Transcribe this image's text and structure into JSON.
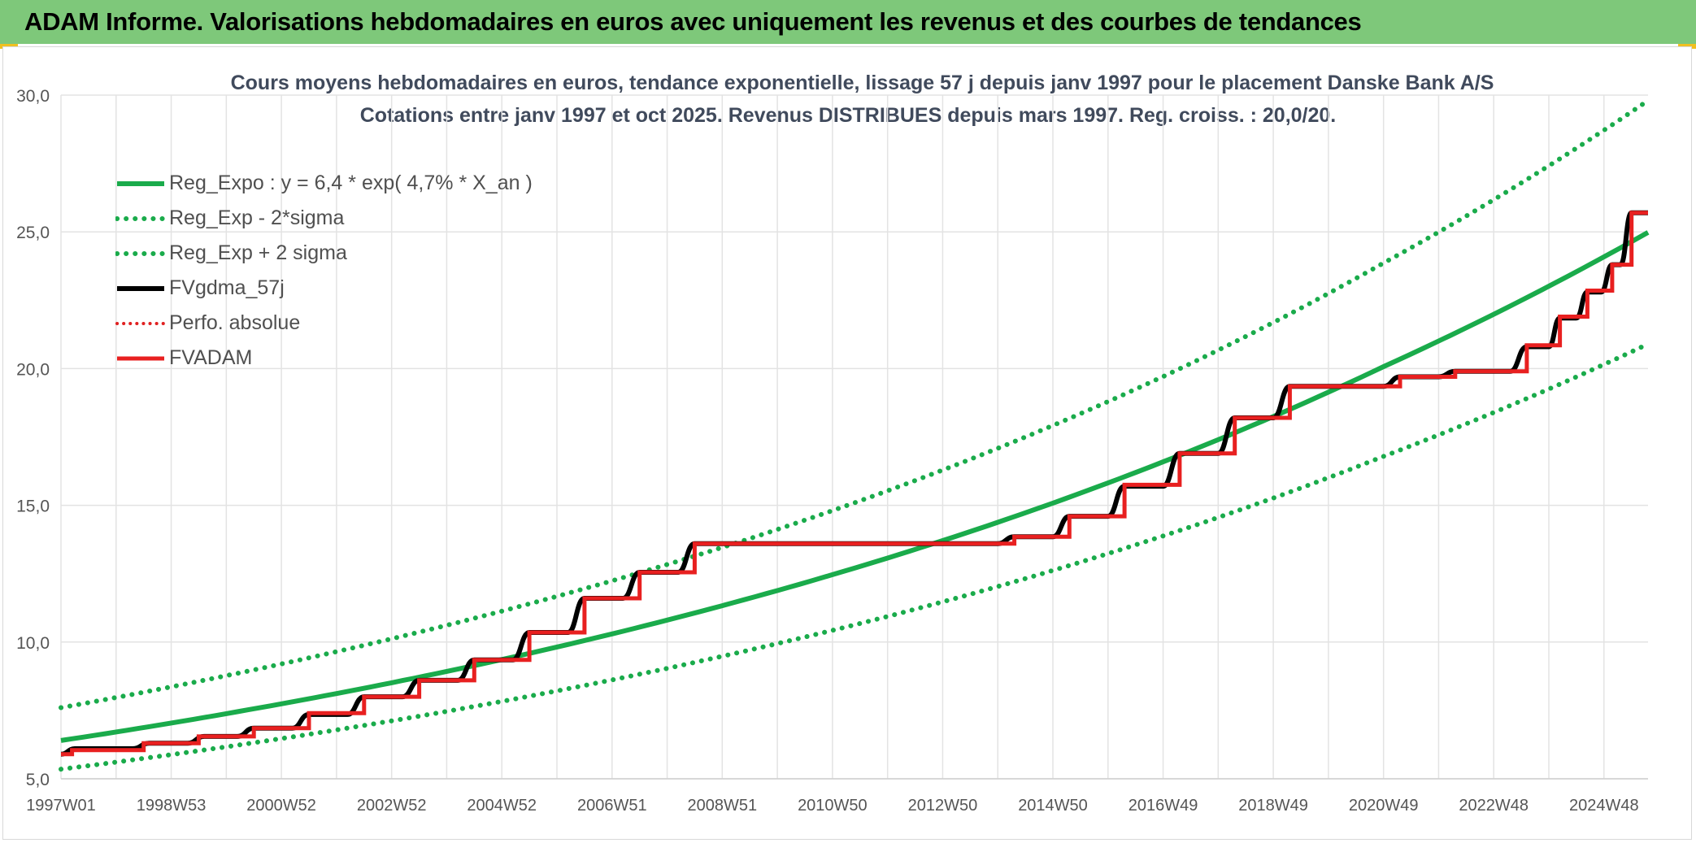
{
  "banner": {
    "title": "ADAM Informe. Valorisations hebdomadaires en euros avec uniquement les revenus et des courbes de tendances"
  },
  "chart_data": {
    "type": "line",
    "title": "Cours moyens hebdomadaires en euros, tendance exponentielle, lissage 57 j depuis janv 1997 pour le placement Danske Bank A/S",
    "subtitle": "Cotations entre janv 1997 et oct 2025. Revenus DISTRIBUES depuis mars 1997. Reg. croiss. : 20,0/20.",
    "xlabel": "",
    "ylabel": "",
    "ylim": [
      5,
      30
    ],
    "xlim": [
      1997.0,
      2025.8
    ],
    "yticks": [
      "5,0",
      "10,0",
      "15,0",
      "20,0",
      "25,0",
      "30,0"
    ],
    "xticks": [
      "1997W01",
      "1998W53",
      "2000W52",
      "2002W52",
      "2004W52",
      "2006W51",
      "2008W51",
      "2010W50",
      "2012W50",
      "2014W50",
      "2016W49",
      "2018W49",
      "2020W49",
      "2022W48",
      "2024W48"
    ],
    "grid": true,
    "legend_position": "top-left",
    "series": [
      {
        "name": "Reg_Expo : y = 6,4 * exp( 4,7% *  X_an )",
        "color": "#1aab4b",
        "style": "solid",
        "points": [
          [
            1997.0,
            6.4
          ],
          [
            2001.0,
            7.74
          ],
          [
            2005.0,
            9.36
          ],
          [
            2009.0,
            11.33
          ],
          [
            2013.0,
            13.71
          ],
          [
            2017.0,
            16.59
          ],
          [
            2021.0,
            20.07
          ],
          [
            2025.8,
            24.98
          ]
        ]
      },
      {
        "name": "Reg_Exp - 2*sigma",
        "color": "#1aab4b",
        "style": "dotted",
        "points": [
          [
            1997.0,
            5.35
          ],
          [
            2001.0,
            6.47
          ],
          [
            2005.0,
            7.83
          ],
          [
            2009.0,
            9.48
          ],
          [
            2013.0,
            11.47
          ],
          [
            2017.0,
            13.88
          ],
          [
            2021.0,
            16.79
          ],
          [
            2025.8,
            20.9
          ]
        ]
      },
      {
        "name": "Reg_Exp + 2 sigma",
        "color": "#1aab4b",
        "style": "dotted",
        "points": [
          [
            1997.0,
            7.6
          ],
          [
            2001.0,
            9.2
          ],
          [
            2005.0,
            11.13
          ],
          [
            2009.0,
            13.46
          ],
          [
            2013.0,
            16.29
          ],
          [
            2017.0,
            19.71
          ],
          [
            2021.0,
            23.86
          ],
          [
            2025.8,
            29.8
          ]
        ]
      },
      {
        "name": "FVgdma_57j",
        "color": "#000000",
        "style": "solid-smooth",
        "points": [
          [
            1997.0,
            5.9
          ],
          [
            1997.25,
            6.1
          ],
          [
            1998.3,
            6.1
          ],
          [
            1998.6,
            6.3
          ],
          [
            1999.3,
            6.3
          ],
          [
            1999.6,
            6.55
          ],
          [
            2000.2,
            6.55
          ],
          [
            2000.5,
            6.85
          ],
          [
            2001.2,
            6.85
          ],
          [
            2001.5,
            7.35
          ],
          [
            2002.2,
            7.35
          ],
          [
            2002.5,
            8.0
          ],
          [
            2003.2,
            8.0
          ],
          [
            2003.5,
            8.6
          ],
          [
            2004.2,
            8.6
          ],
          [
            2004.5,
            9.35
          ],
          [
            2005.2,
            9.35
          ],
          [
            2005.5,
            10.35
          ],
          [
            2006.2,
            10.35
          ],
          [
            2006.5,
            11.6
          ],
          [
            2007.2,
            11.6
          ],
          [
            2007.5,
            12.55
          ],
          [
            2008.2,
            12.55
          ],
          [
            2008.5,
            13.6
          ],
          [
            2014.0,
            13.6
          ],
          [
            2014.3,
            13.85
          ],
          [
            2015.0,
            13.85
          ],
          [
            2015.3,
            14.6
          ],
          [
            2016.0,
            14.6
          ],
          [
            2016.3,
            15.7
          ],
          [
            2017.0,
            15.7
          ],
          [
            2017.3,
            16.9
          ],
          [
            2018.0,
            16.9
          ],
          [
            2018.3,
            18.2
          ],
          [
            2019.0,
            18.2
          ],
          [
            2019.3,
            19.35
          ],
          [
            2021.0,
            19.35
          ],
          [
            2021.3,
            19.7
          ],
          [
            2022.0,
            19.7
          ],
          [
            2022.3,
            19.9
          ],
          [
            2023.3,
            19.9
          ],
          [
            2023.6,
            20.8
          ],
          [
            2024.0,
            20.8
          ],
          [
            2024.2,
            21.85
          ],
          [
            2024.5,
            21.85
          ],
          [
            2024.7,
            22.8
          ],
          [
            2024.95,
            22.8
          ],
          [
            2025.15,
            23.8
          ],
          [
            2025.3,
            23.8
          ],
          [
            2025.5,
            25.7
          ],
          [
            2025.8,
            25.7
          ]
        ]
      },
      {
        "name": "Perfo. absolue",
        "color": "#e02020",
        "style": "dotted",
        "points": []
      },
      {
        "name": "FVADAM",
        "color": "#e82020",
        "style": "step",
        "points": [
          [
            1997.0,
            5.9
          ],
          [
            1997.2,
            6.05
          ],
          [
            1998.5,
            6.3
          ],
          [
            1999.5,
            6.55
          ],
          [
            2000.5,
            6.85
          ],
          [
            2001.5,
            7.4
          ],
          [
            2002.5,
            8.0
          ],
          [
            2003.5,
            8.6
          ],
          [
            2004.5,
            9.35
          ],
          [
            2005.5,
            10.35
          ],
          [
            2006.5,
            11.6
          ],
          [
            2007.5,
            12.55
          ],
          [
            2008.5,
            13.6
          ],
          [
            2014.0,
            13.6
          ],
          [
            2014.3,
            13.85
          ],
          [
            2015.3,
            14.6
          ],
          [
            2016.3,
            15.75
          ],
          [
            2017.3,
            16.9
          ],
          [
            2018.3,
            18.2
          ],
          [
            2019.3,
            19.35
          ],
          [
            2021.3,
            19.7
          ],
          [
            2022.3,
            19.9
          ],
          [
            2023.6,
            20.85
          ],
          [
            2024.2,
            21.9
          ],
          [
            2024.7,
            22.85
          ],
          [
            2025.15,
            23.8
          ],
          [
            2025.5,
            25.7
          ],
          [
            2025.8,
            25.7
          ]
        ]
      }
    ]
  }
}
